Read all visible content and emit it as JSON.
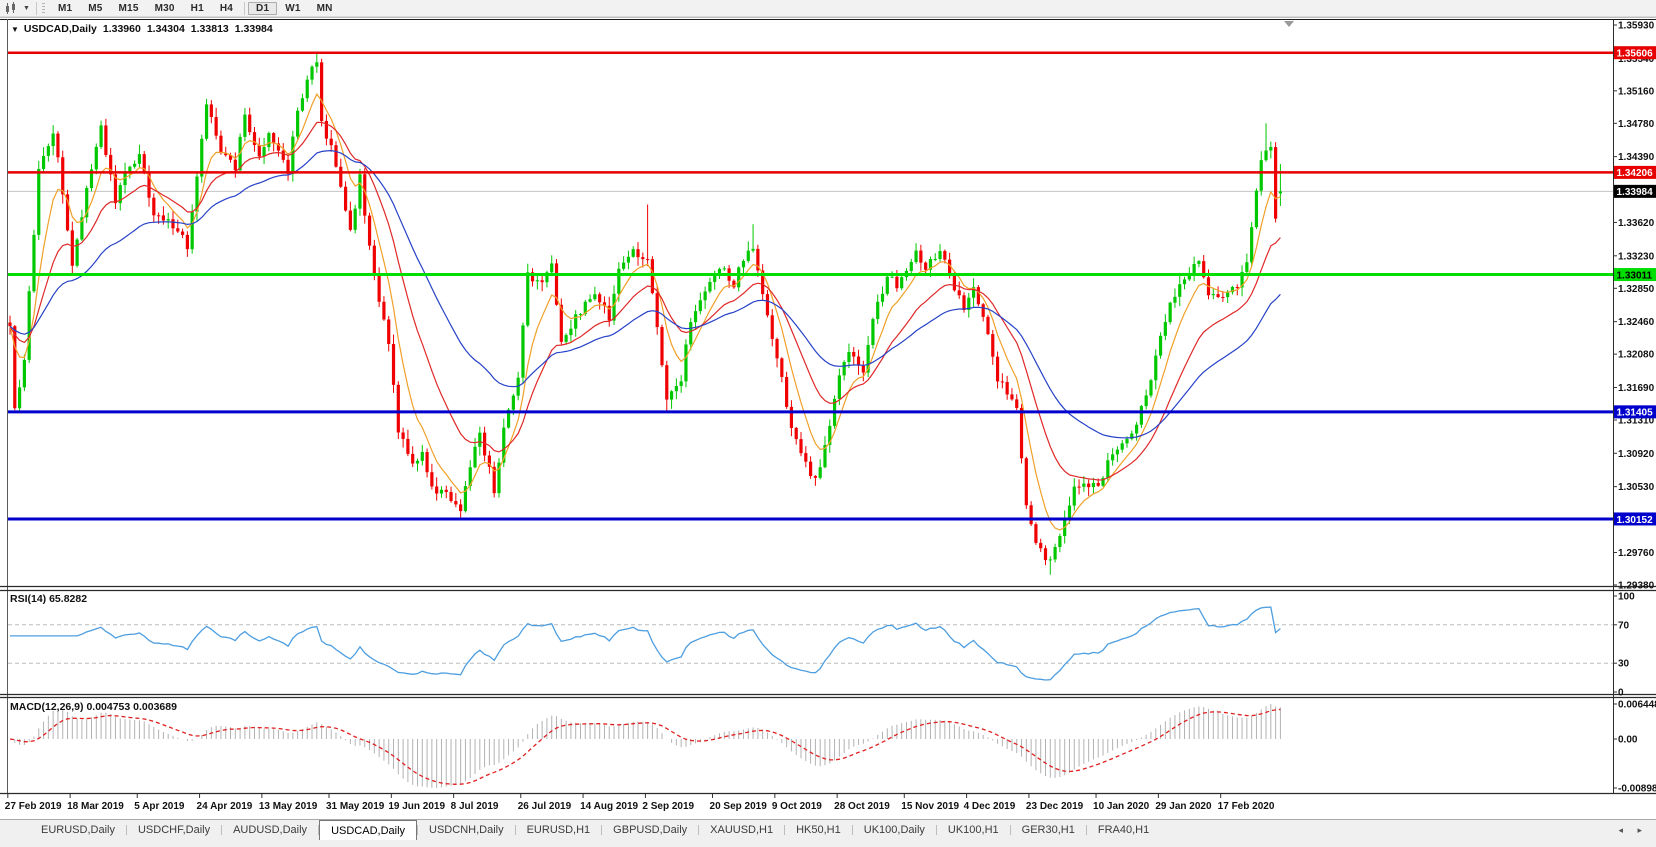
{
  "toolbar": {
    "timeframes": [
      "M1",
      "M5",
      "M15",
      "M30",
      "H1",
      "H4",
      "D1",
      "W1",
      "MN"
    ],
    "active_timeframe": "D1",
    "chart_icon": "chart-mode-icon",
    "dropdown_icon": "chevron-down-icon"
  },
  "header": {
    "symbol": "USDCAD,Daily",
    "open": "1.33960",
    "high": "1.34304",
    "low": "1.33813",
    "close": "1.33984"
  },
  "chart_data": {
    "type": "candlestick",
    "symbol": "USDCAD",
    "timeframe": "Daily",
    "bars": 266,
    "visible_price_range": [
      1.2938,
      1.3593
    ],
    "price_axis_ticks": [
      "1.35930",
      "1.35540",
      "1.35160",
      "1.34780",
      "1.34390",
      "1.34000",
      "1.33620",
      "1.33230",
      "1.32850",
      "1.32460",
      "1.32080",
      "1.31690",
      "1.31310",
      "1.30920",
      "1.30530",
      "1.30140",
      "1.29760",
      "1.29380"
    ],
    "date_axis_ticks": [
      "27 Feb 2019",
      "18 Mar 2019",
      "5 Apr 2019",
      "24 Apr 2019",
      "13 May 2019",
      "31 May 2019",
      "19 Jun 2019",
      "8 Jul 2019",
      "26 Jul 2019",
      "14 Aug 2019",
      "2 Sep 2019",
      "20 Sep 2019",
      "9 Oct 2019",
      "28 Oct 2019",
      "15 Nov 2019",
      "4 Dec 2019",
      "23 Dec 2019",
      "10 Jan 2020",
      "29 Jan 2020",
      "17 Feb 2020"
    ],
    "date_tick_bar_offsets": [
      0,
      13,
      27,
      40,
      53,
      67,
      80,
      93,
      107,
      120,
      133,
      147,
      160,
      173,
      187,
      200,
      213,
      227,
      240,
      253
    ],
    "horizontal_lines": [
      {
        "price": 1.35606,
        "label": "1.35606",
        "color": "#e60000",
        "label_bg": "#e60000",
        "label_fg": "#ffffff",
        "width": 2.5
      },
      {
        "price": 1.34206,
        "label": "1.34206",
        "color": "#e60000",
        "label_bg": "#e60000",
        "label_fg": "#ffffff",
        "width": 2.5
      },
      {
        "price": 1.33984,
        "label": "1.33984",
        "color": "#c4c4c4",
        "label_bg": "#000000",
        "label_fg": "#ffffff",
        "width": 1
      },
      {
        "price": 1.33011,
        "label": "1.33011",
        "color": "#00dd00",
        "label_bg": "#00dd00",
        "label_fg": "#000000",
        "width": 3
      },
      {
        "price": 1.31405,
        "label": "1.31405",
        "color": "#0000cc",
        "label_bg": "#0000cc",
        "label_fg": "#ffffff",
        "width": 3
      },
      {
        "price": 1.30152,
        "label": "1.30152",
        "color": "#0000cc",
        "label_bg": "#0000cc",
        "label_fg": "#ffffff",
        "width": 3
      }
    ],
    "candle_colors": {
      "up": "#00c800",
      "down": "#f00000"
    },
    "moving_averages": [
      {
        "period": 7,
        "color": "#f0a028"
      },
      {
        "period": 18,
        "color": "#e02828"
      },
      {
        "period": 40,
        "color": "#2642c8"
      }
    ],
    "last_bar": {
      "open": 1.3396,
      "high": 1.34304,
      "low": 1.33813,
      "close": 1.33984
    },
    "price_path": [
      [
        0,
        1.3245
      ],
      [
        1,
        1.314
      ],
      [
        3,
        1.3205
      ],
      [
        6,
        1.342
      ],
      [
        9,
        1.3465
      ],
      [
        10,
        1.344
      ],
      [
        13,
        1.331
      ],
      [
        16,
        1.34
      ],
      [
        19,
        1.3472
      ],
      [
        22,
        1.3385
      ],
      [
        24,
        1.342
      ],
      [
        27,
        1.344
      ],
      [
        30,
        1.337
      ],
      [
        34,
        1.336
      ],
      [
        37,
        1.3335
      ],
      [
        39,
        1.342
      ],
      [
        41,
        1.35
      ],
      [
        44,
        1.3445
      ],
      [
        47,
        1.3425
      ],
      [
        49,
        1.349
      ],
      [
        52,
        1.3438
      ],
      [
        54,
        1.347
      ],
      [
        58,
        1.3422
      ],
      [
        60,
        1.3495
      ],
      [
        63,
        1.354
      ],
      [
        64,
        1.3548
      ],
      [
        65,
        1.348
      ],
      [
        68,
        1.3432
      ],
      [
        71,
        1.335
      ],
      [
        73,
        1.3415
      ],
      [
        75,
        1.333
      ],
      [
        79,
        1.3215
      ],
      [
        81,
        1.312
      ],
      [
        84,
        1.308
      ],
      [
        86,
        1.3095
      ],
      [
        88,
        1.305
      ],
      [
        91,
        1.3045
      ],
      [
        94,
        1.3022
      ],
      [
        96,
        1.308
      ],
      [
        98,
        1.3115
      ],
      [
        101,
        1.305
      ],
      [
        103,
        1.312
      ],
      [
        106,
        1.318
      ],
      [
        108,
        1.33
      ],
      [
        111,
        1.329
      ],
      [
        113,
        1.331
      ],
      [
        115,
        1.3225
      ],
      [
        118,
        1.325
      ],
      [
        122,
        1.328
      ],
      [
        125,
        1.325
      ],
      [
        127,
        1.331
      ],
      [
        130,
        1.333
      ],
      [
        133,
        1.3315
      ],
      [
        135,
        1.324
      ],
      [
        137,
        1.315
      ],
      [
        140,
        1.318
      ],
      [
        142,
        1.325
      ],
      [
        146,
        1.329
      ],
      [
        148,
        1.331
      ],
      [
        151,
        1.329
      ],
      [
        153,
        1.332
      ],
      [
        155,
        1.333
      ],
      [
        158,
        1.325
      ],
      [
        161,
        1.318
      ],
      [
        163,
        1.312
      ],
      [
        166,
        1.308
      ],
      [
        168,
        1.306
      ],
      [
        170,
        1.31
      ],
      [
        173,
        1.318
      ],
      [
        175,
        1.321
      ],
      [
        178,
        1.319
      ],
      [
        180,
        1.325
      ],
      [
        183,
        1.33
      ],
      [
        185,
        1.329
      ],
      [
        189,
        1.333
      ],
      [
        191,
        1.331
      ],
      [
        194,
        1.333
      ],
      [
        196,
        1.33
      ],
      [
        199,
        1.326
      ],
      [
        201,
        1.329
      ],
      [
        204,
        1.323
      ],
      [
        206,
        1.318
      ],
      [
        210,
        1.315
      ],
      [
        212,
        1.303
      ],
      [
        214,
        1.2985
      ],
      [
        217,
        1.2965
      ],
      [
        219,
        1.3
      ],
      [
        222,
        1.305
      ],
      [
        224,
        1.306
      ],
      [
        227,
        1.305
      ],
      [
        229,
        1.308
      ],
      [
        233,
        1.311
      ],
      [
        235,
        1.313
      ],
      [
        238,
        1.318
      ],
      [
        240,
        1.323
      ],
      [
        242,
        1.327
      ],
      [
        245,
        1.33
      ],
      [
        248,
        1.332
      ],
      [
        250,
        1.328
      ],
      [
        253,
        1.327
      ],
      [
        256,
        1.329
      ],
      [
        258,
        1.332
      ],
      [
        260,
        1.34
      ],
      [
        261,
        1.343
      ],
      [
        263,
        1.3455
      ],
      [
        264,
        1.3365
      ],
      [
        265,
        1.33984
      ]
    ]
  },
  "rsi": {
    "label": "RSI(14) 65.8282",
    "period": 14,
    "last_value": 65.8282,
    "axis_ticks": [
      "100",
      "70",
      "30",
      "0"
    ],
    "levels": [
      70,
      30
    ],
    "line_color": "#4d9ee0"
  },
  "macd": {
    "label": "MACD(12,26,9) 0.004753 0.003689",
    "params": "12,26,9",
    "last_macd": 0.004753,
    "last_signal": 0.003689,
    "axis_ticks": [
      "0.006448",
      "0.00",
      "-0.008982"
    ],
    "histogram_color": "#b2b2b2",
    "signal_color": "#e02020"
  },
  "tabs": {
    "items": [
      "EURUSD,Daily",
      "USDCHF,Daily",
      "AUDUSD,Daily",
      "USDCAD,Daily",
      "USDCNH,Daily",
      "EURUSD,H1",
      "GBPUSD,Daily",
      "XAUUSD,H1",
      "HK50,H1",
      "UK100,Daily",
      "UK100,H1",
      "GER30,H1",
      "FRA40,H1"
    ],
    "active": "USDCAD,Daily",
    "scroll_left_icon": "◂",
    "scroll_right_icon": "▸"
  }
}
